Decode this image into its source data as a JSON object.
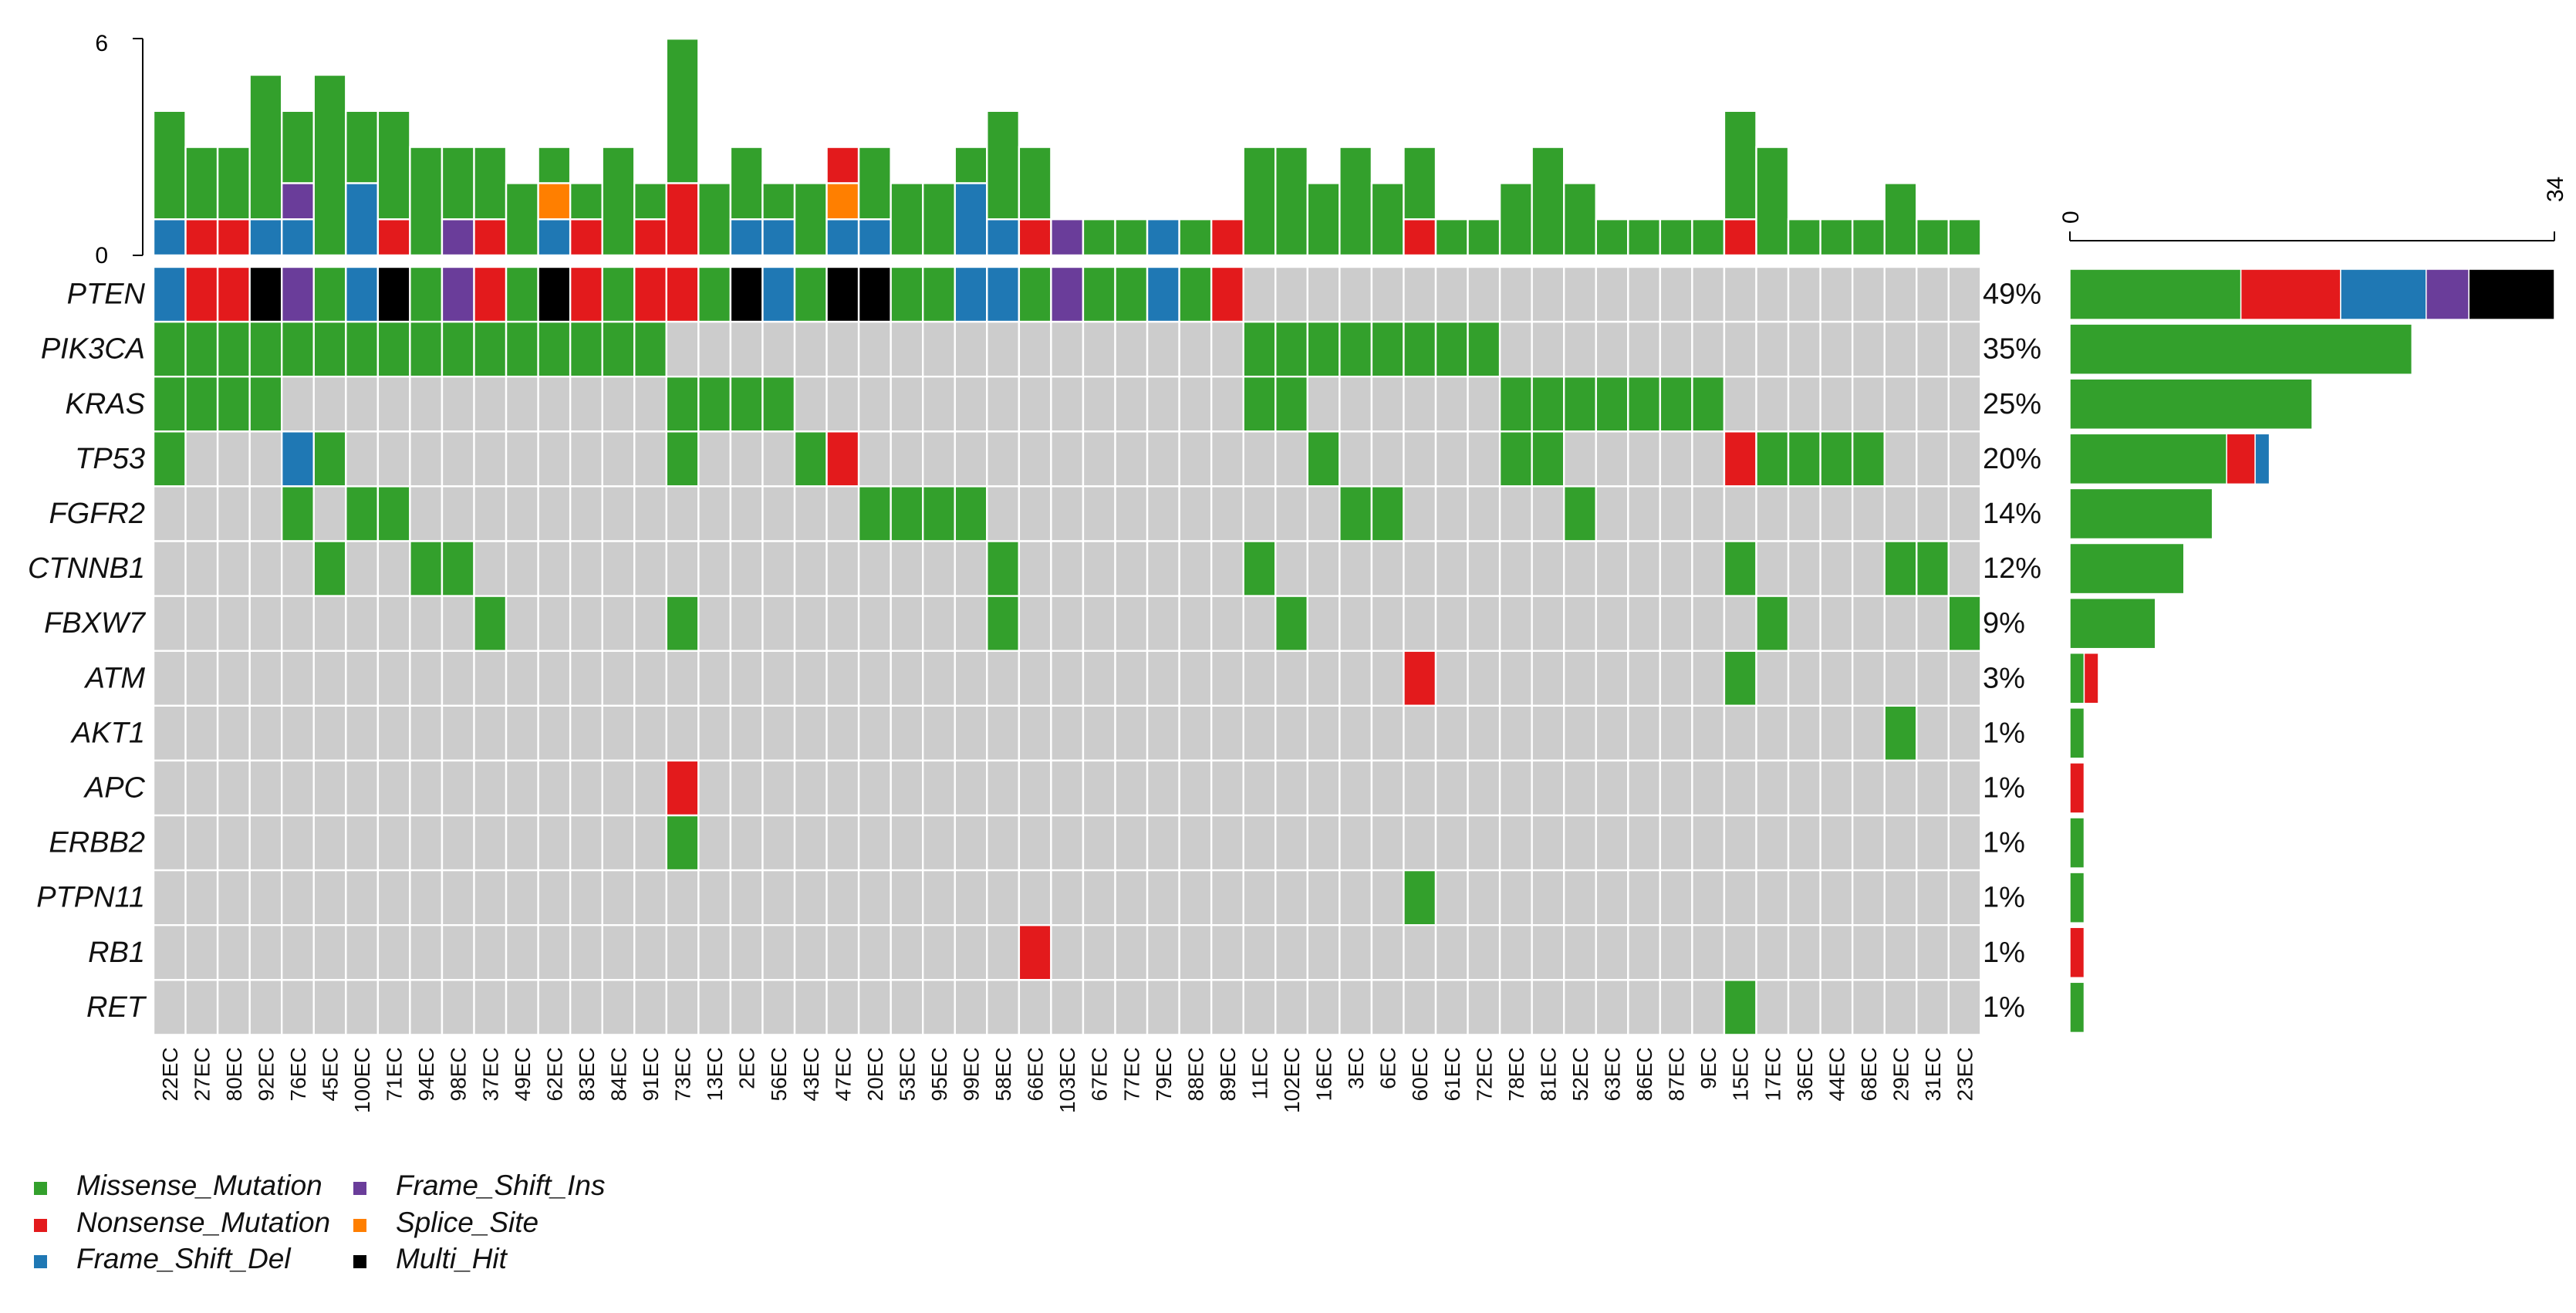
{
  "chart_data": {
    "type": "heatmap",
    "title": "",
    "top_axis_ticks": [
      "0",
      "6"
    ],
    "top_axis_range": [
      0,
      6
    ],
    "right_axis_ticks": [
      "0",
      "34"
    ],
    "right_axis_range": [
      0,
      34
    ],
    "samples": [
      "22EC",
      "27EC",
      "80EC",
      "92EC",
      "76EC",
      "45EC",
      "100EC",
      "71EC",
      "94EC",
      "98EC",
      "37EC",
      "49EC",
      "62EC",
      "83EC",
      "84EC",
      "91EC",
      "73EC",
      "13EC",
      "2EC",
      "56EC",
      "43EC",
      "47EC",
      "20EC",
      "53EC",
      "95EC",
      "99EC",
      "58EC",
      "66EC",
      "103EC",
      "67EC",
      "77EC",
      "79EC",
      "88EC",
      "89EC",
      "11EC",
      "102EC",
      "16EC",
      "3EC",
      "6EC",
      "60EC",
      "61EC",
      "72EC",
      "78EC",
      "81EC",
      "52EC",
      "63EC",
      "86EC",
      "87EC",
      "9EC",
      "15EC",
      "17EC",
      "36EC",
      "44EC",
      "68EC",
      "29EC",
      "31EC",
      "23EC"
    ],
    "genes": [
      "PTEN",
      "PIK3CA",
      "KRAS",
      "TP53",
      "FGFR2",
      "CTNNB1",
      "FBXW7",
      "ATM",
      "AKT1",
      "APC",
      "ERBB2",
      "PTPN11",
      "RB1",
      "RET"
    ],
    "percentages": [
      "49%",
      "35%",
      "25%",
      "20%",
      "14%",
      "12%",
      "9%",
      "3%",
      "1%",
      "1%",
      "1%",
      "1%",
      "1%",
      "1%"
    ],
    "legend": [
      {
        "key": "M",
        "label": "Missense_Mutation",
        "color": "#33a02c"
      },
      {
        "key": "N",
        "label": "Nonsense_Mutation",
        "color": "#e31a1c"
      },
      {
        "key": "D",
        "label": "Frame_Shift_Del",
        "color": "#1f78b4"
      },
      {
        "key": "I",
        "label": "Frame_Shift_Ins",
        "color": "#6a3d9a"
      },
      {
        "key": "S",
        "label": "Splice_Site",
        "color": "#ff7f00"
      },
      {
        "key": "H",
        "label": "Multi_Hit",
        "color": "#000000"
      }
    ],
    "empty_color": "#cccccc",
    "matrix": {
      "PTEN": [
        "D",
        "N",
        "N",
        "H",
        "I",
        "M",
        "D",
        "H",
        "M",
        "I",
        "N",
        "M",
        "H",
        "N",
        "M",
        "N",
        "N",
        "M",
        "H",
        "D",
        "M",
        "H",
        "H",
        "M",
        "M",
        "D",
        "D",
        "M",
        "I",
        "M",
        "M",
        "D",
        "M",
        "N",
        "",
        "",
        "",
        "",
        "",
        "",
        "",
        "",
        "",
        "",
        "",
        "",
        "",
        "",
        "",
        "",
        "",
        "",
        "",
        "",
        "",
        "",
        ""
      ],
      "PIK3CA": [
        "M",
        "M",
        "M",
        "M",
        "M",
        "M",
        "M",
        "M",
        "M",
        "M",
        "M",
        "M",
        "M",
        "M",
        "M",
        "M",
        "",
        "",
        "",
        "",
        "",
        "",
        "",
        "",
        "",
        "",
        "",
        "",
        "",
        "",
        "",
        "",
        "",
        "",
        "M",
        "M",
        "M",
        "M",
        "M",
        "M",
        "M",
        "M",
        "",
        "",
        "",
        "",
        "",
        "",
        "",
        "",
        "",
        "",
        "",
        "",
        "",
        "",
        ""
      ],
      "KRAS": [
        "M",
        "M",
        "M",
        "M",
        "",
        "",
        "",
        "",
        "",
        "",
        "",
        "",
        "",
        "",
        "",
        "",
        "M",
        "M",
        "M",
        "M",
        "",
        "",
        "",
        "",
        "",
        "",
        "",
        "",
        "",
        "",
        "",
        "",
        "",
        "",
        "M",
        "M",
        "",
        "",
        "",
        "",
        "",
        "",
        "M",
        "M",
        "M",
        "M",
        "M",
        "M",
        "M",
        "",
        "",
        "",
        "",
        "",
        "",
        "",
        ""
      ],
      "TP53": [
        "M",
        "",
        "",
        "",
        "D",
        "M",
        "",
        "",
        "",
        "",
        "",
        "",
        "",
        "",
        "",
        "",
        "M",
        "",
        "",
        "",
        "M",
        "N",
        "",
        "",
        "",
        "",
        "",
        "",
        "",
        "",
        "",
        "",
        "",
        "",
        "",
        "",
        "M",
        "",
        "",
        "",
        "",
        "",
        "M",
        "M",
        "",
        "",
        "",
        "",
        "",
        "N",
        "M",
        "M",
        "M",
        "M",
        "",
        "",
        ""
      ],
      "FGFR2": [
        "",
        "",
        "",
        "",
        "M",
        "",
        "M",
        "M",
        "",
        "",
        "",
        "",
        "",
        "",
        "",
        "",
        "",
        "",
        "",
        "",
        "",
        "",
        "M",
        "M",
        "M",
        "M",
        "",
        "",
        "",
        "",
        "",
        "",
        "",
        "",
        "",
        "",
        "",
        "M",
        "M",
        "",
        "",
        "",
        "",
        "",
        "M",
        "",
        "",
        "",
        "",
        "",
        "",
        "",
        "",
        "",
        "",
        "",
        ""
      ],
      "CTNNB1": [
        "",
        "",
        "",
        "",
        "",
        "M",
        "",
        "",
        "M",
        "M",
        "",
        "",
        "",
        "",
        "",
        "",
        "",
        "",
        "",
        "",
        "",
        "",
        "",
        "",
        "",
        "",
        "M",
        "",
        "",
        "",
        "",
        "",
        "",
        "",
        "M",
        "",
        "",
        "",
        "",
        "",
        "",
        "",
        "",
        "",
        "",
        "",
        "",
        "",
        "",
        "M",
        "",
        "",
        "",
        "",
        "M",
        "M",
        ""
      ],
      "FBXW7": [
        "",
        "",
        "",
        "",
        "",
        "",
        "",
        "",
        "",
        "",
        "M",
        "",
        "",
        "",
        "",
        "",
        "M",
        "",
        "",
        "",
        "",
        "",
        "",
        "",
        "",
        "",
        "M",
        "",
        "",
        "",
        "",
        "",
        "",
        "",
        "",
        "M",
        "",
        "",
        "",
        "",
        "",
        "",
        "",
        "",
        "",
        "",
        "",
        "",
        "",
        "",
        "M",
        "",
        "",
        "",
        "",
        "",
        "M"
      ],
      "ATM": [
        "",
        "",
        "",
        "",
        "",
        "",
        "",
        "",
        "",
        "",
        "",
        "",
        "",
        "",
        "",
        "",
        "",
        "",
        "",
        "",
        "",
        "",
        "",
        "",
        "",
        "",
        "",
        "",
        "",
        "",
        "",
        "",
        "",
        "",
        "",
        "",
        "",
        "",
        "",
        "N",
        "",
        "",
        "",
        "",
        "",
        "",
        "",
        "",
        "",
        "M",
        "",
        "",
        "",
        "",
        "",
        "",
        ""
      ],
      "AKT1": [
        "",
        "",
        "",
        "",
        "",
        "",
        "",
        "",
        "",
        "",
        "",
        "",
        "",
        "",
        "",
        "",
        "",
        "",
        "",
        "",
        "",
        "",
        "",
        "",
        "",
        "",
        "",
        "",
        "",
        "",
        "",
        "",
        "",
        "",
        "",
        "",
        "",
        "",
        "",
        "",
        "",
        "",
        "",
        "",
        "",
        "",
        "",
        "",
        "",
        "",
        "",
        "",
        "",
        "",
        "M",
        "",
        ""
      ],
      "APC": [
        "",
        "",
        "",
        "",
        "",
        "",
        "",
        "",
        "",
        "",
        "",
        "",
        "",
        "",
        "",
        "",
        "N",
        "",
        "",
        "",
        "",
        "",
        "",
        "",
        "",
        "",
        "",
        "",
        "",
        "",
        "",
        "",
        "",
        "",
        "",
        "",
        "",
        "",
        "",
        "",
        "",
        "",
        "",
        "",
        "",
        "",
        "",
        "",
        "",
        "",
        "",
        "",
        "",
        "",
        "",
        "",
        ""
      ],
      "ERBB2": [
        "",
        "",
        "",
        "",
        "",
        "",
        "",
        "",
        "",
        "",
        "",
        "",
        "",
        "",
        "",
        "",
        "M",
        "",
        "",
        "",
        "",
        "",
        "",
        "",
        "",
        "",
        "",
        "",
        "",
        "",
        "",
        "",
        "",
        "",
        "",
        "",
        "",
        "",
        "",
        "",
        "",
        "",
        "",
        "",
        "",
        "",
        "",
        "",
        "",
        "",
        "",
        "",
        "",
        "",
        "",
        "",
        ""
      ],
      "PTPN11": [
        "",
        "",
        "",
        "",
        "",
        "",
        "",
        "",
        "",
        "",
        "",
        "",
        "",
        "",
        "",
        "",
        "",
        "",
        "",
        "",
        "",
        "",
        "",
        "",
        "",
        "",
        "",
        "",
        "",
        "",
        "",
        "",
        "",
        "",
        "",
        "",
        "",
        "",
        "",
        "M",
        "",
        "",
        "",
        "",
        "",
        "",
        "",
        "",
        "",
        "",
        "",
        "",
        "",
        "",
        "",
        "",
        ""
      ],
      "RB1": [
        "",
        "",
        "",
        "",
        "",
        "",
        "",
        "",
        "",
        "",
        "",
        "",
        "",
        "",
        "",
        "",
        "",
        "",
        "",
        "",
        "",
        "",
        "",
        "",
        "",
        "",
        "",
        "N",
        "",
        "",
        "",
        "",
        "",
        "",
        "",
        "",
        "",
        "",
        "",
        "",
        "",
        "",
        "",
        "",
        "",
        "",
        "",
        "",
        "",
        "",
        "",
        "",
        "",
        "",
        "",
        "",
        ""
      ],
      "RET": [
        "",
        "",
        "",
        "",
        "",
        "",
        "",
        "",
        "",
        "",
        "",
        "",
        "",
        "",
        "",
        "",
        "",
        "",
        "",
        "",
        "",
        "",
        "",
        "",
        "",
        "",
        "",
        "",
        "",
        "",
        "",
        "",
        "",
        "",
        "",
        "",
        "",
        "",
        "",
        "",
        "",
        "",
        "",
        "",
        "",
        "",
        "",
        "",
        "",
        "M",
        "",
        "",
        "",
        "",
        "",
        "",
        ""
      ]
    },
    "top_bars": [
      {
        "M": 3,
        "D": 1
      },
      {
        "M": 2,
        "N": 1
      },
      {
        "M": 2,
        "N": 1
      },
      {
        "M": 4,
        "D": 1
      },
      {
        "M": 2,
        "I": 1,
        "D": 1
      },
      {
        "M": 5
      },
      {
        "M": 2,
        "D": 2
      },
      {
        "M": 3,
        "N": 1
      },
      {
        "M": 3
      },
      {
        "M": 2,
        "I": 1
      },
      {
        "M": 2,
        "N": 1
      },
      {
        "M": 2
      },
      {
        "M": 1,
        "D": 1,
        "S": 1
      },
      {
        "M": 1,
        "N": 1
      },
      {
        "M": 3
      },
      {
        "M": 1,
        "N": 1
      },
      {
        "M": 4,
        "N": 2
      },
      {
        "M": 2
      },
      {
        "M": 2,
        "D": 1
      },
      {
        "M": 1,
        "D": 1
      },
      {
        "M": 2
      },
      {
        "D": 1,
        "N": 1,
        "S": 1
      },
      {
        "M": 2,
        "D": 1
      },
      {
        "M": 2
      },
      {
        "M": 2
      },
      {
        "M": 1,
        "D": 2
      },
      {
        "M": 3,
        "D": 1
      },
      {
        "M": 2,
        "N": 1
      },
      {
        "I": 1
      },
      {
        "M": 1
      },
      {
        "M": 1
      },
      {
        "D": 1
      },
      {
        "M": 1
      },
      {
        "N": 1
      },
      {
        "M": 3
      },
      {
        "M": 3
      },
      {
        "M": 2
      },
      {
        "M": 3
      },
      {
        "M": 2
      },
      {
        "M": 2,
        "N": 1
      },
      {
        "M": 1
      },
      {
        "M": 1
      },
      {
        "M": 2
      },
      {
        "M": 3
      },
      {
        "M": 2
      },
      {
        "M": 1
      },
      {
        "M": 1
      },
      {
        "M": 1
      },
      {
        "M": 1
      },
      {
        "M": 3,
        "N": 1
      },
      {
        "M": 3
      },
      {
        "M": 1
      },
      {
        "M": 1
      },
      {
        "M": 1
      },
      {
        "M": 2
      },
      {
        "M": 1
      },
      {
        "M": 1
      }
    ],
    "right_bars": [
      {
        "M": 12,
        "N": 7,
        "D": 6,
        "I": 3,
        "H": 6
      },
      {
        "M": 24
      },
      {
        "M": 17
      },
      {
        "M": 11,
        "N": 2,
        "D": 1
      },
      {
        "M": 10
      },
      {
        "M": 8
      },
      {
        "M": 6
      },
      {
        "M": 1,
        "N": 1
      },
      {
        "M": 1
      },
      {
        "N": 1
      },
      {
        "M": 1
      },
      {
        "M": 1
      },
      {
        "N": 1
      },
      {
        "M": 1
      }
    ]
  }
}
